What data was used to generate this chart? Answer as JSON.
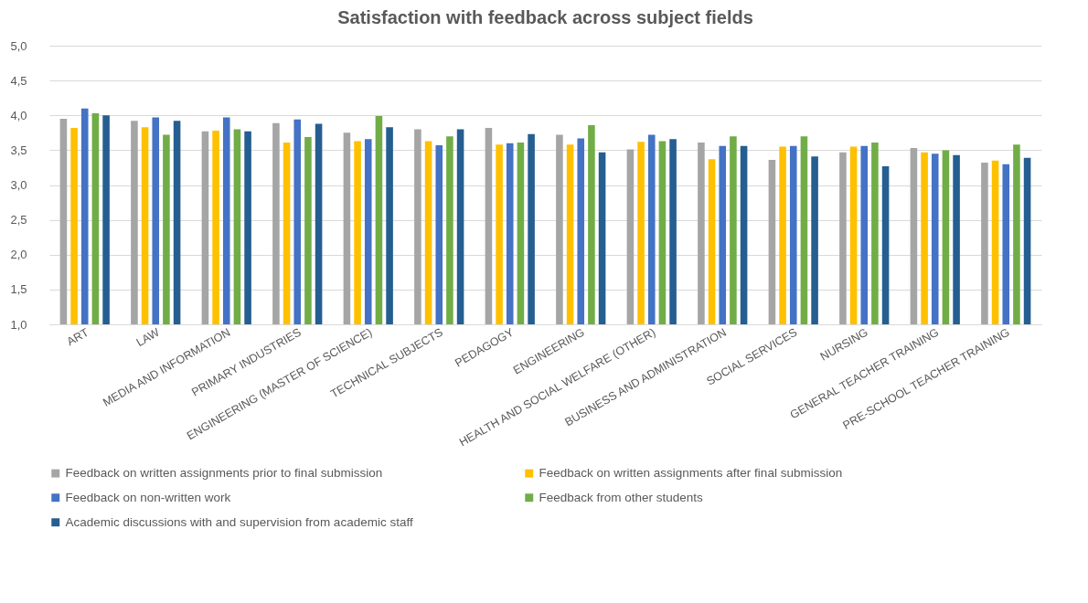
{
  "chart_data": {
    "type": "bar",
    "title": "Satisfaction with feedback across subject fields",
    "categories": [
      "ART",
      "LAW",
      "MEDIA AND INFORMATION",
      "PRIMARY INDUSTRIES",
      "ENGINEERING (MASTER OF SCIENCE)",
      "TECHNICAL SUBJECTS",
      "PEDAGOGY",
      "ENGINEERING",
      "HEALTH AND SOCIAL WELFARE (OTHER)",
      "BUSINESS AND ADMINISTRATION",
      "SOCIAL SERVICES",
      "NURSING",
      "GENERAL TEACHER TRAINING",
      "PRE-SCHOOL TEACHER TRAINING"
    ],
    "series": [
      {
        "name": "Feedback on written assignments prior to final submission",
        "color": "#a5a5a5",
        "values": [
          3.95,
          3.92,
          3.77,
          3.89,
          3.75,
          3.8,
          3.82,
          3.72,
          3.51,
          3.61,
          3.36,
          3.47,
          3.53,
          3.32
        ]
      },
      {
        "name": "Feedback on written assignments after final submission",
        "color": "#ffc000",
        "values": [
          3.82,
          3.83,
          3.78,
          3.61,
          3.63,
          3.63,
          3.58,
          3.58,
          3.62,
          3.37,
          3.55,
          3.55,
          3.47,
          3.35
        ]
      },
      {
        "name": "Feedback on non-written work",
        "color": "#4472c4",
        "values": [
          4.1,
          3.97,
          3.97,
          3.94,
          3.66,
          3.57,
          3.6,
          3.67,
          3.72,
          3.56,
          3.56,
          3.56,
          3.45,
          3.3
        ]
      },
      {
        "name": "Feedback from other students",
        "color": "#70ad47",
        "values": [
          4.03,
          3.72,
          3.8,
          3.69,
          3.99,
          3.7,
          3.61,
          3.86,
          3.63,
          3.7,
          3.7,
          3.61,
          3.5,
          3.58
        ]
      },
      {
        "name": "Academic discussions with and supervision from academic staff",
        "color": "#255e91",
        "values": [
          4.0,
          3.92,
          3.77,
          3.88,
          3.83,
          3.8,
          3.73,
          3.47,
          3.66,
          3.56,
          3.41,
          3.27,
          3.43,
          3.39
        ]
      }
    ],
    "ylim": [
      1.0,
      5.0
    ],
    "yticks": [
      {
        "value": 1.0,
        "label": "1,0"
      },
      {
        "value": 1.5,
        "label": "1,5"
      },
      {
        "value": 2.0,
        "label": "2,0"
      },
      {
        "value": 2.5,
        "label": "2,5"
      },
      {
        "value": 3.0,
        "label": "3,0"
      },
      {
        "value": 3.5,
        "label": "3,5"
      },
      {
        "value": 4.0,
        "label": "4,0"
      },
      {
        "value": 4.5,
        "label": "4,5"
      },
      {
        "value": 5.0,
        "label": "5,0"
      }
    ],
    "grid": "y",
    "legend": "bottom"
  }
}
